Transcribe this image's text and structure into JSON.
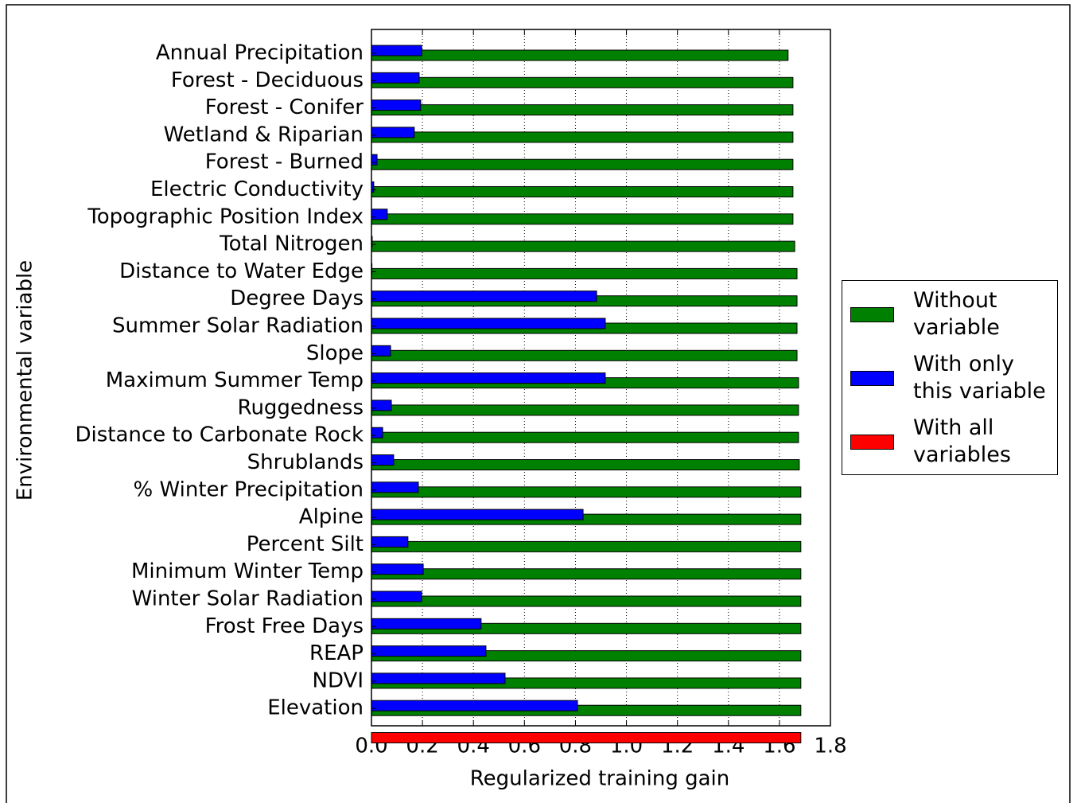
{
  "chart_data": {
    "type": "barh",
    "xlabel": "Regularized training gain",
    "ylabel": "Environmental variable",
    "categories": [
      "Annual Precipitation",
      "Forest - Deciduous",
      "Forest - Conifer",
      "Wetland & Riparian",
      "Forest - Burned",
      "Electric Conductivity",
      "Topographic Position Index",
      "Total Nitrogen",
      "Distance to Water Edge",
      "Degree Days",
      "Summer Solar Radiation",
      "Slope",
      "Maximum Summer Temp",
      "Ruggedness",
      "Distance to Carbonate Rock",
      "Shrublands",
      "% Winter Precipitation",
      "Alpine",
      "Percent Silt",
      "Minimum Winter Temp",
      "Winter Solar Radiation",
      "Frost Free Days",
      "REAP",
      "NDVI",
      "Elevation",
      null
    ],
    "series": [
      {
        "name": "Without variable",
        "color": "#008000",
        "values": [
          1.634,
          1.653,
          1.653,
          1.653,
          1.653,
          1.653,
          1.653,
          1.66,
          1.669,
          1.669,
          1.669,
          1.669,
          1.675,
          1.675,
          1.675,
          1.678,
          1.684,
          1.684,
          1.684,
          1.684,
          1.684,
          1.684,
          1.684,
          1.684,
          1.684,
          null
        ]
      },
      {
        "name": "With only this variable",
        "color": "#0000ff",
        "values": [
          0.197,
          0.187,
          0.193,
          0.168,
          0.022,
          0.009,
          0.062,
          0.003,
          0.002,
          0.883,
          0.917,
          0.075,
          0.917,
          0.078,
          0.044,
          0.087,
          0.184,
          0.83,
          0.143,
          0.203,
          0.197,
          0.43,
          0.449,
          0.524,
          0.808,
          null
        ]
      },
      {
        "name": "With all variables",
        "color": "#ff0000",
        "values": [
          null,
          null,
          null,
          null,
          null,
          null,
          null,
          null,
          null,
          null,
          null,
          null,
          null,
          null,
          null,
          null,
          null,
          null,
          null,
          null,
          null,
          null,
          null,
          null,
          null,
          1.684
        ]
      }
    ],
    "xlim": [
      0,
      1.8
    ],
    "xticks": [
      {
        "value": 0,
        "label": "0.0"
      },
      0.2,
      0.4,
      0.6,
      0.8,
      {
        "value": 1,
        "label": "1.0"
      },
      1.2,
      1.4,
      1.6,
      1.8
    ],
    "grid": true
  }
}
